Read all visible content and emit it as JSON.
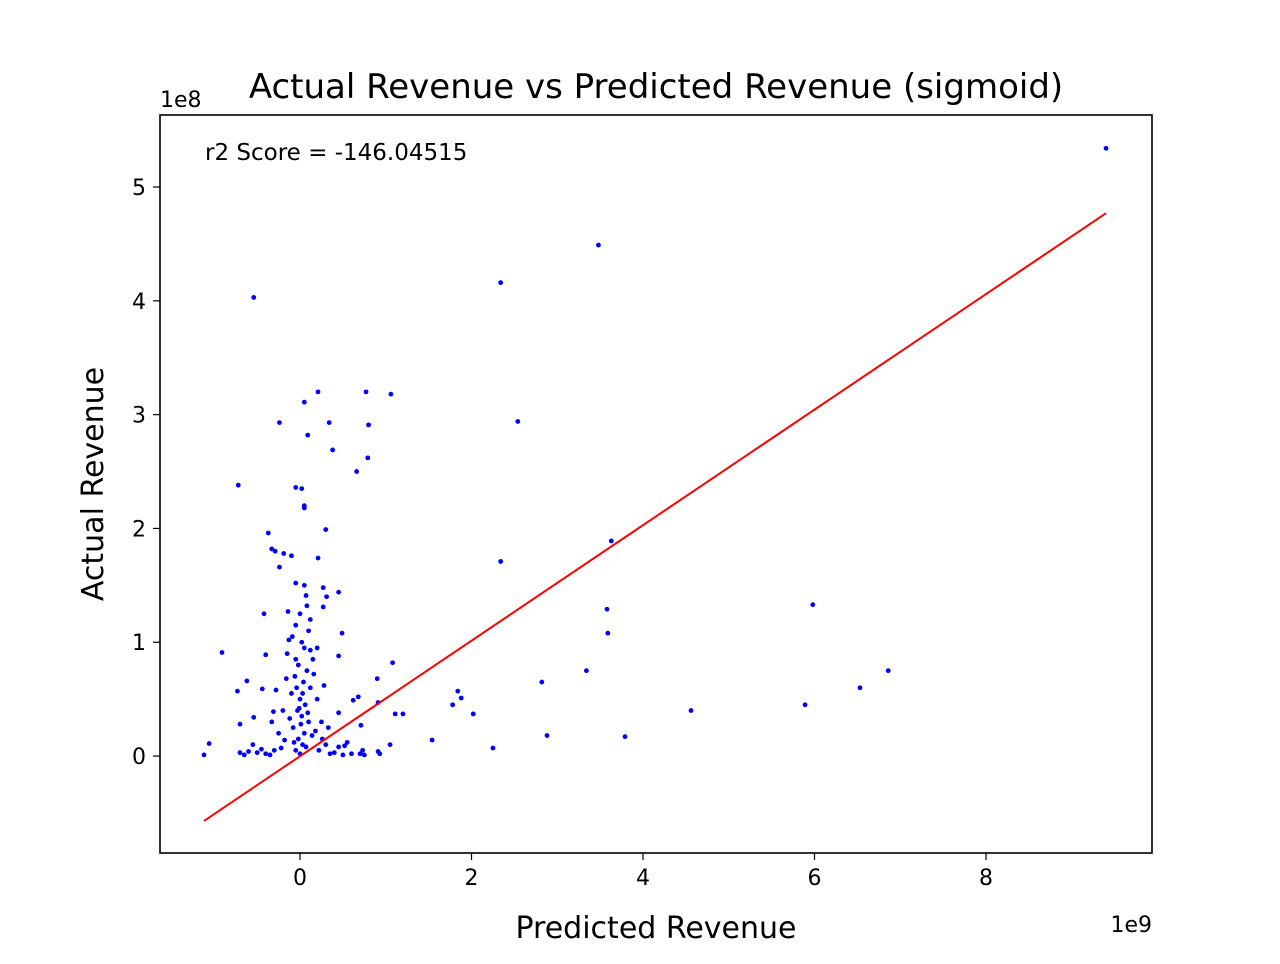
{
  "chart_data": {
    "type": "scatter",
    "title": "Actual Revenue vs Predicted Revenue (sigmoid)",
    "xlabel": "Predicted Revenue",
    "ylabel": "Actual Revenue",
    "x_offset_label": "1e9",
    "y_offset_label": "1e8",
    "annotation": "r2 Score = -146.04515",
    "color": "#0000ff",
    "x": [
      9.4,
      3.48,
      2.34,
      -0.54,
      2.54,
      1.06,
      0.77,
      0.21,
      0.05,
      0.34,
      -0.24,
      0.8,
      0.09,
      0.38,
      0.79,
      0.66,
      -0.72,
      -0.05,
      0.02,
      0.05,
      0.05,
      0.3,
      -0.37,
      3.63,
      -0.33,
      -0.29,
      -0.19,
      -0.1,
      0.21,
      2.34,
      -0.24,
      -0.05,
      0.05,
      0.27,
      0.45,
      0.31,
      0.07,
      -0.42,
      -0.14,
      0.08,
      3.58,
      5.98,
      -0.05,
      0.27,
      3.59,
      0.49,
      -0.91,
      -0.4,
      -0.13,
      0.12,
      0.45,
      1.08,
      3.34,
      6.86,
      2.82,
      0.9,
      -0.62,
      6.53,
      -0.73,
      1.84,
      -0.44,
      1.88,
      0.68,
      0.62,
      0.91,
      1.78,
      5.89,
      4.56,
      2.02,
      1.11,
      1.2,
      0.45,
      -0.31,
      -0.54,
      -0.7,
      0.71,
      2.88,
      3.79,
      1.54,
      1.05,
      2.25,
      -1.06,
      -1.12,
      0.52,
      0.91,
      0.93,
      0.73,
      0.0,
      -0.05,
      0.03,
      -0.02,
      0.05,
      -0.08,
      0.1,
      0.02,
      -0.03,
      0.06,
      0.0,
      -0.1,
      0.12,
      0.04,
      -0.06,
      0.08,
      -0.02,
      0.15,
      -0.15,
      0.05,
      0.02,
      -0.09,
      0.1,
      0.2,
      -0.2,
      0.25,
      -0.25,
      0.3,
      -0.3,
      0.35,
      -0.35,
      0.4,
      -0.4,
      0.45,
      -0.45,
      0.5,
      -0.5,
      0.55,
      -0.55,
      0.6,
      -0.6,
      0.18,
      -0.12,
      0.07,
      -0.07,
      0.14,
      -0.18,
      0.22,
      -0.22,
      0.01,
      -0.01,
      0.09,
      0.28,
      -0.28,
      0.16,
      -0.16,
      0.12,
      0.0,
      -0.04,
      0.03,
      0.33,
      -0.33,
      0.26,
      -0.65,
      0.7,
      0.75,
      -0.7,
      0.2,
      -0.05
    ],
    "y": [
      5.34,
      4.49,
      4.16,
      4.03,
      2.94,
      3.18,
      3.2,
      3.2,
      3.11,
      2.93,
      2.93,
      2.91,
      2.82,
      2.69,
      2.62,
      2.5,
      2.38,
      2.36,
      2.35,
      2.2,
      2.18,
      1.99,
      1.96,
      1.89,
      1.82,
      1.8,
      1.78,
      1.76,
      1.74,
      1.71,
      1.66,
      1.52,
      1.5,
      1.48,
      1.44,
      1.4,
      1.41,
      1.25,
      1.27,
      1.32,
      1.29,
      1.33,
      1.15,
      1.31,
      1.08,
      1.08,
      0.91,
      0.89,
      1.02,
      0.93,
      0.88,
      0.82,
      0.75,
      0.75,
      0.65,
      0.68,
      0.66,
      0.6,
      0.57,
      0.57,
      0.59,
      0.51,
      0.52,
      0.49,
      0.47,
      0.45,
      0.45,
      0.4,
      0.37,
      0.37,
      0.37,
      0.38,
      0.39,
      0.34,
      0.28,
      0.27,
      0.18,
      0.17,
      0.14,
      0.1,
      0.07,
      0.11,
      0.01,
      0.09,
      0.04,
      0.02,
      0.05,
      0.02,
      0.05,
      0.1,
      0.15,
      0.2,
      0.25,
      0.3,
      0.35,
      0.4,
      0.45,
      0.5,
      0.55,
      0.6,
      0.65,
      0.7,
      0.75,
      0.8,
      0.85,
      0.9,
      0.95,
      1.0,
      1.05,
      1.1,
      0.5,
      0.4,
      0.3,
      0.2,
      0.1,
      0.05,
      0.02,
      0.01,
      0.03,
      0.02,
      0.08,
      0.06,
      0.01,
      0.03,
      0.12,
      0.1,
      0.02,
      0.04,
      0.22,
      0.33,
      0.08,
      0.12,
      0.18,
      0.14,
      0.05,
      0.07,
      0.28,
      0.42,
      0.38,
      0.62,
      0.58,
      0.72,
      0.68,
      1.2,
      1.25,
      0.6,
      0.55,
      0.25,
      0.3,
      0.15,
      0.01,
      0.02,
      0.01,
      0.03,
      0.95,
      0.85
    ],
    "line": {
      "x": [
        -1.12,
        9.4
      ],
      "y": [
        -0.57,
        4.77
      ],
      "color": "#ff0000"
    },
    "xlim": [
      -1.633,
      9.936
    ],
    "ylim": [
      -0.852,
      5.633
    ],
    "xticks": [
      0,
      2,
      4,
      6,
      8
    ],
    "yticks": [
      0,
      1,
      2,
      3,
      4,
      5
    ]
  }
}
